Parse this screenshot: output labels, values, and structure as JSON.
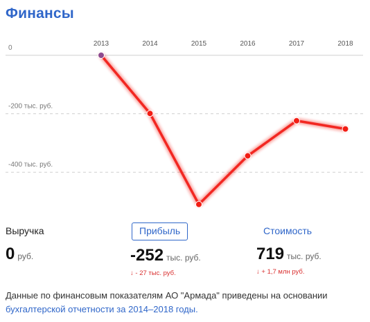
{
  "header": {
    "title": "Финансы"
  },
  "chart_data": {
    "type": "line",
    "x": [
      "2013",
      "2014",
      "2015",
      "2016",
      "2017",
      "2018"
    ],
    "series": [
      {
        "values": [
          0,
          -199,
          -510,
          -344,
          -224,
          -252
        ]
      }
    ],
    "y_ticks": [
      {
        "value": 0,
        "label": "0"
      },
      {
        "value": -200,
        "label": "-200 тыс. руб."
      },
      {
        "value": -400,
        "label": "-400 тыс. руб."
      }
    ],
    "ylim": [
      -520,
      0
    ],
    "grid": true,
    "line_color": "#f21d14",
    "first_point_color": "#8e4a8e"
  },
  "metrics": [
    {
      "label": "Выручка",
      "value": "0",
      "unit": "руб.",
      "delta": ""
    },
    {
      "label": "Прибыль",
      "value": "-252",
      "unit": "тыс. руб.",
      "delta": "↓ - 27 тыс. руб."
    },
    {
      "label": "Стоимость",
      "value": "719",
      "unit": "тыс. руб.",
      "delta": "↓ + 1,7 млн руб."
    }
  ],
  "description": {
    "text": "Данные по финансовым показателям АО \"Армада\" приведены на основании",
    "link": "бухгалтерской отчетности за 2014–2018 годы."
  },
  "colors": {
    "accent": "#2f66c9",
    "negative": "#d92e2e"
  }
}
